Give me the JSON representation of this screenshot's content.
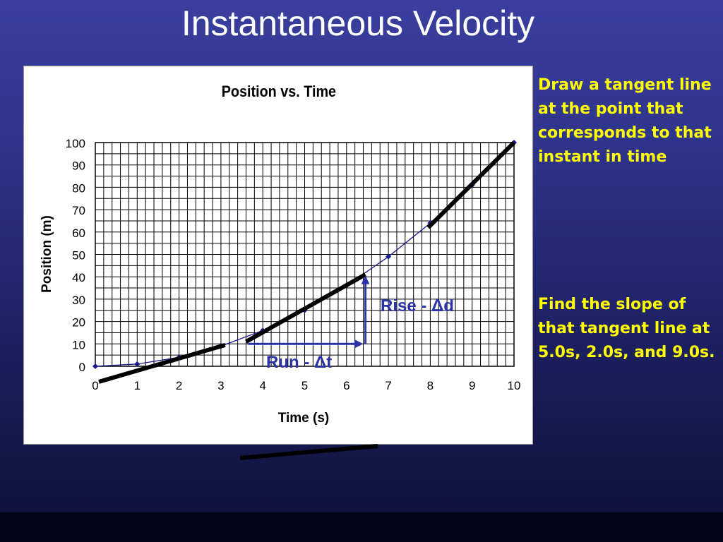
{
  "slide": {
    "title": "Instantaneous Velocity",
    "note_1": "Draw a tangent line at the point that corresponds to that instant in time",
    "note_2": "Find the slope of that tangent line at 5.0s, 2.0s, and 9.0s."
  },
  "annotations": {
    "rise_label": "Rise - Δd",
    "run_label": "Run - Δt",
    "rise_color": "#2b33a6",
    "tangent_color": "#000000"
  },
  "chart_data": {
    "type": "line",
    "title": "Position vs. Time",
    "xlabel": "Time (s)",
    "ylabel": "Position (m)",
    "xlim": [
      0,
      10
    ],
    "ylim": [
      0,
      100
    ],
    "xticks": [
      0,
      1,
      2,
      3,
      4,
      5,
      6,
      7,
      8,
      9,
      10
    ],
    "yticks": [
      0,
      10,
      20,
      30,
      40,
      50,
      60,
      70,
      80,
      90,
      100
    ],
    "grid": true,
    "series": [
      {
        "x": [
          0,
          1,
          2,
          3,
          4,
          5,
          6,
          7,
          8,
          9,
          10
        ],
        "y": [
          0,
          1,
          4,
          9,
          16,
          25,
          36,
          49,
          64,
          81,
          100
        ],
        "color": "#1a1a8c"
      }
    ],
    "tangent_lines": [
      {
        "x": [
          0.1,
          6.5
        ],
        "y": [
          -7,
          40
        ]
      },
      {
        "x": [
          7.95,
          10
        ],
        "y": [
          62,
          100
        ]
      }
    ]
  }
}
